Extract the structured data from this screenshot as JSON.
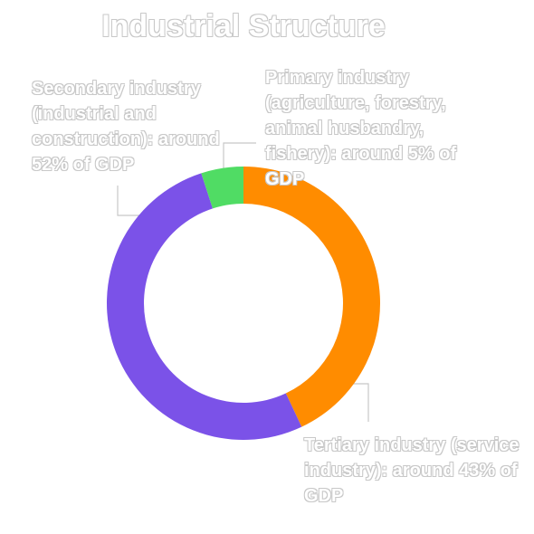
{
  "chart_data": {
    "type": "donut",
    "title": "Industrial Structure",
    "values": [
      43,
      52,
      5
    ],
    "value_labels": [
      "Tertiary industry (service industry): around 43% of GDP",
      "Secondary industry (industrial and construction): around 52% of GDP",
      "Primary industry (agriculture, forestry, animal husbandry, fishery): around 5% of GDP"
    ],
    "colors": [
      "#ff8c00",
      "#7b52e8",
      "#50dc64"
    ]
  }
}
